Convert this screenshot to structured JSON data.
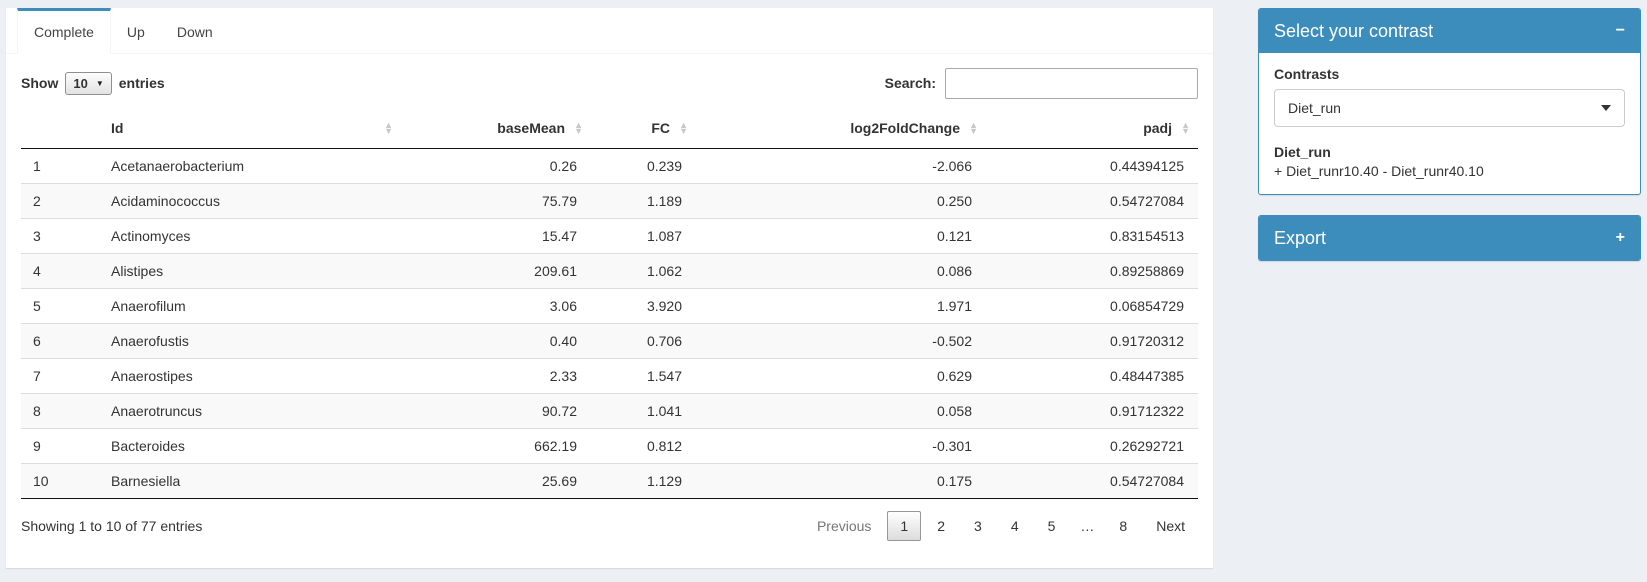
{
  "tabs": [
    {
      "label": "Complete",
      "active": true
    },
    {
      "label": "Up",
      "active": false
    },
    {
      "label": "Down",
      "active": false
    }
  ],
  "controls": {
    "show_label": "Show",
    "page_length": "10",
    "entries_label": "entries",
    "search_label": "Search:",
    "search_value": ""
  },
  "table": {
    "columns": [
      "Id",
      "baseMean",
      "FC",
      "log2FoldChange",
      "padj"
    ],
    "rows": [
      {
        "n": "1",
        "id": "Acetanaerobacterium",
        "baseMean": "0.26",
        "fc": "0.239",
        "log2fc": "-2.066",
        "padj": "0.44394125"
      },
      {
        "n": "2",
        "id": "Acidaminococcus",
        "baseMean": "75.79",
        "fc": "1.189",
        "log2fc": "0.250",
        "padj": "0.54727084"
      },
      {
        "n": "3",
        "id": "Actinomyces",
        "baseMean": "15.47",
        "fc": "1.087",
        "log2fc": "0.121",
        "padj": "0.83154513"
      },
      {
        "n": "4",
        "id": "Alistipes",
        "baseMean": "209.61",
        "fc": "1.062",
        "log2fc": "0.086",
        "padj": "0.89258869"
      },
      {
        "n": "5",
        "id": "Anaerofilum",
        "baseMean": "3.06",
        "fc": "3.920",
        "log2fc": "1.971",
        "padj": "0.06854729"
      },
      {
        "n": "6",
        "id": "Anaerofustis",
        "baseMean": "0.40",
        "fc": "0.706",
        "log2fc": "-0.502",
        "padj": "0.91720312"
      },
      {
        "n": "7",
        "id": "Anaerostipes",
        "baseMean": "2.33",
        "fc": "1.547",
        "log2fc": "0.629",
        "padj": "0.48447385"
      },
      {
        "n": "8",
        "id": "Anaerotruncus",
        "baseMean": "90.72",
        "fc": "1.041",
        "log2fc": "0.058",
        "padj": "0.91712322"
      },
      {
        "n": "9",
        "id": "Bacteroides",
        "baseMean": "662.19",
        "fc": "0.812",
        "log2fc": "-0.301",
        "padj": "0.26292721"
      },
      {
        "n": "10",
        "id": "Barnesiella",
        "baseMean": "25.69",
        "fc": "1.129",
        "log2fc": "0.175",
        "padj": "0.54727084"
      }
    ]
  },
  "footer": {
    "info": "Showing 1 to 10 of 77 entries",
    "previous": "Previous",
    "next": "Next",
    "pages": [
      {
        "label": "1",
        "state": "current"
      },
      {
        "label": "2"
      },
      {
        "label": "3"
      },
      {
        "label": "4"
      },
      {
        "label": "5"
      },
      {
        "label": "…",
        "state": "ellipsis"
      },
      {
        "label": "8"
      }
    ]
  },
  "contrast_box": {
    "title": "Select your contrast",
    "collapse_icon": "−",
    "contrasts_label": "Contrasts",
    "selected_contrast": "Diet_run",
    "contrast_name": "Diet_run",
    "contrast_formula": "+ Diet_runr10.40 - Diet_runr40.10"
  },
  "export_box": {
    "title": "Export",
    "expand_icon": "+"
  },
  "colors": {
    "primary": "#3c8dbc",
    "page_background": "#ecf0f5"
  }
}
